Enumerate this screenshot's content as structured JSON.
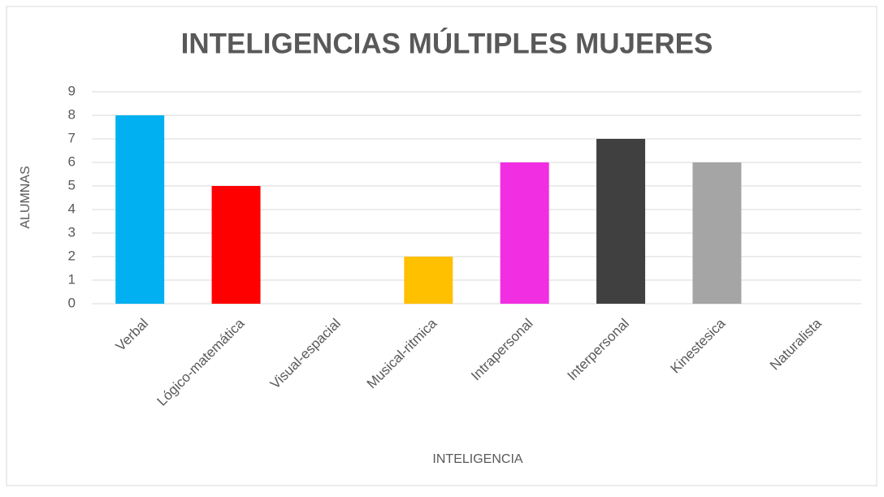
{
  "chart_data": {
    "type": "bar",
    "title": "INTELIGENCIAS MÚLTIPLES MUJERES",
    "x_label": "INTELIGENCIA",
    "y_label": "ALUMNAS",
    "categories": [
      "Verbal",
      "Lógico-matemática",
      "Visual-espacial",
      "Musical-ritmica",
      "Intrapersonal",
      "Interpersonal",
      "Kinestesica",
      "Naturalista"
    ],
    "values": [
      8,
      5,
      0,
      2,
      6,
      7,
      6,
      0
    ],
    "colors": [
      "#00b0f0",
      "#ff0000",
      null,
      "#ffc000",
      "#f22ee2",
      "#404040",
      "#a5a5a5",
      null
    ],
    "ylim": [
      0,
      9
    ],
    "yticks": [
      0,
      1,
      2,
      3,
      4,
      5,
      6,
      7,
      8,
      9
    ],
    "grid": true
  }
}
